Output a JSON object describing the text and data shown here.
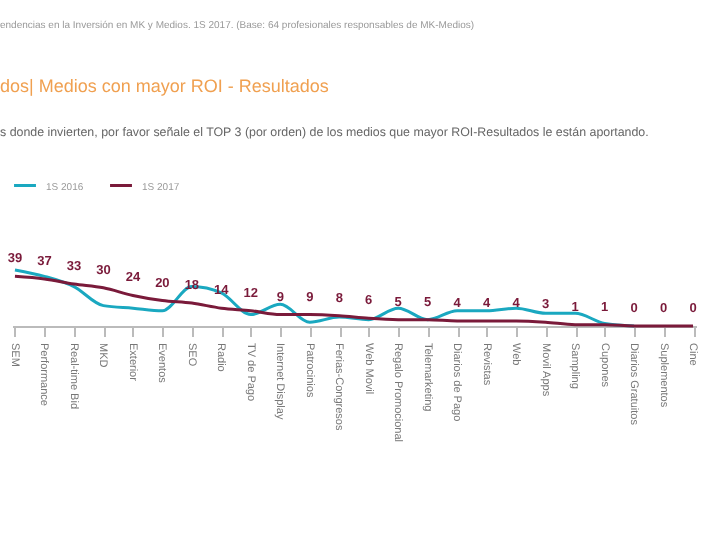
{
  "chart_data": {
    "type": "line",
    "title": "dos| Medios con mayor ROI - Resultados",
    "subtitle": "s donde invierten, por favor señale el TOP 3 (por orden) de los medios que mayor ROI-Resultados le están aportando.",
    "annotations": [
      "endencias en la Inversión en MK y Medios. 1S 2017. (Base: 64 profesionales responsables de MK-Medios)"
    ],
    "categories": [
      "SEM",
      "Performance",
      "Real-time Bid",
      "MKD",
      "Exterior",
      "Eventos",
      "SEO",
      "Radio",
      "TV de Pago",
      "Internet Display",
      "Patrocinios",
      "Ferias-Congresos",
      "Web Movil",
      "Regalo Promocional",
      "Telemarketing",
      "Diarios de Pago",
      "Revistas",
      "Web",
      "Movil Apps",
      "Sampling",
      "Cupones",
      "Diarios Gratuitos",
      "Suplementos",
      "Cine"
    ],
    "series": [
      {
        "name": "1S 2016",
        "color": "#1aa8c0",
        "values": [
          44,
          39,
          31,
          16,
          14,
          12,
          31,
          26,
          9,
          17,
          3,
          7,
          5,
          14,
          5,
          12,
          12,
          14,
          10,
          10,
          2,
          0,
          null,
          null
        ]
      },
      {
        "name": "1S 2017",
        "color": "#7a1a3a",
        "values": [
          39,
          37,
          33,
          30,
          24,
          20,
          18,
          14,
          12,
          9,
          9,
          8,
          6,
          5,
          5,
          4,
          4,
          4,
          3,
          1,
          1,
          0,
          0,
          0
        ],
        "value_labels": [
          "39",
          "37",
          "33",
          "30",
          "24",
          "20",
          "18",
          "14",
          "12",
          "9",
          "9",
          "8",
          "6",
          "5",
          "5",
          "4",
          "4",
          "4",
          "3",
          "1",
          "1",
          "0",
          "0",
          "0"
        ]
      }
    ],
    "legend": "top left",
    "tick_labels": "x",
    "grid": false,
    "line_style": "solid",
    "marker": "none"
  }
}
